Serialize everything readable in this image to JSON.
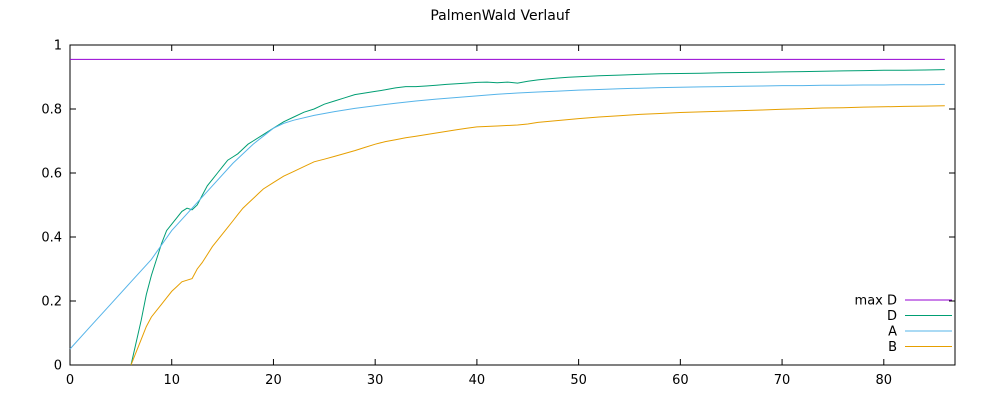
{
  "chart_data": {
    "type": "line",
    "title": "PalmenWald Verlauf",
    "xlabel": "",
    "ylabel": "",
    "xlim": [
      0,
      87
    ],
    "ylim": [
      0,
      1
    ],
    "xticks": [
      0,
      10,
      20,
      30,
      40,
      50,
      60,
      70,
      80
    ],
    "ytick_values": [
      0,
      0.2,
      0.4,
      0.6,
      0.8,
      1
    ],
    "ytick_labels": [
      "0",
      "0.2",
      "0.4",
      "0.6",
      "0.8",
      "1"
    ],
    "grid": false,
    "border_box": true,
    "legend_position": "inside bottom right",
    "axis_color": "#000000",
    "series": [
      {
        "name": "max D",
        "color": "#9400d3",
        "points": [
          [
            0,
            0.955
          ],
          [
            86,
            0.955
          ]
        ]
      },
      {
        "name": "D",
        "color": "#009e73",
        "points": [
          [
            6,
            0
          ],
          [
            6.5,
            0.07
          ],
          [
            7,
            0.14
          ],
          [
            7.5,
            0.22
          ],
          [
            8,
            0.28
          ],
          [
            8.5,
            0.33
          ],
          [
            9,
            0.38
          ],
          [
            9.5,
            0.42
          ],
          [
            10,
            0.44
          ],
          [
            10.5,
            0.46
          ],
          [
            11,
            0.48
          ],
          [
            11.5,
            0.49
          ],
          [
            12,
            0.485
          ],
          [
            12.5,
            0.5
          ],
          [
            13,
            0.53
          ],
          [
            13.5,
            0.56
          ],
          [
            14,
            0.58
          ],
          [
            14.5,
            0.6
          ],
          [
            15,
            0.62
          ],
          [
            15.5,
            0.64
          ],
          [
            16,
            0.65
          ],
          [
            16.5,
            0.66
          ],
          [
            17,
            0.675
          ],
          [
            17.5,
            0.69
          ],
          [
            18,
            0.7
          ],
          [
            19,
            0.72
          ],
          [
            20,
            0.74
          ],
          [
            21,
            0.76
          ],
          [
            22,
            0.775
          ],
          [
            23,
            0.79
          ],
          [
            24,
            0.8
          ],
          [
            25,
            0.815
          ],
          [
            26,
            0.825
          ],
          [
            27,
            0.835
          ],
          [
            28,
            0.845
          ],
          [
            29,
            0.85
          ],
          [
            30,
            0.855
          ],
          [
            31,
            0.86
          ],
          [
            32,
            0.866
          ],
          [
            33,
            0.87
          ],
          [
            34,
            0.87
          ],
          [
            35,
            0.872
          ],
          [
            36,
            0.874
          ],
          [
            37,
            0.877
          ],
          [
            38,
            0.879
          ],
          [
            39,
            0.881
          ],
          [
            40,
            0.883
          ],
          [
            41,
            0.884
          ],
          [
            42,
            0.882
          ],
          [
            43,
            0.884
          ],
          [
            44,
            0.881
          ],
          [
            45,
            0.887
          ],
          [
            46,
            0.891
          ],
          [
            47,
            0.894
          ],
          [
            48,
            0.897
          ],
          [
            49,
            0.899
          ],
          [
            50,
            0.901
          ],
          [
            52,
            0.904
          ],
          [
            54,
            0.906
          ],
          [
            56,
            0.908
          ],
          [
            58,
            0.91
          ],
          [
            60,
            0.911
          ],
          [
            62,
            0.912
          ],
          [
            64,
            0.913
          ],
          [
            66,
            0.914
          ],
          [
            68,
            0.915
          ],
          [
            70,
            0.916
          ],
          [
            72,
            0.917
          ],
          [
            74,
            0.918
          ],
          [
            76,
            0.919
          ],
          [
            78,
            0.92
          ],
          [
            80,
            0.921
          ],
          [
            82,
            0.921
          ],
          [
            84,
            0.922
          ],
          [
            86,
            0.923
          ]
        ]
      },
      {
        "name": "A",
        "color": "#56b4e9",
        "points": [
          [
            0,
            0.05
          ],
          [
            2,
            0.12
          ],
          [
            4,
            0.19
          ],
          [
            6,
            0.26
          ],
          [
            8,
            0.33
          ],
          [
            10,
            0.42
          ],
          [
            12,
            0.49
          ],
          [
            14,
            0.56
          ],
          [
            16,
            0.63
          ],
          [
            18,
            0.69
          ],
          [
            19,
            0.715
          ],
          [
            20,
            0.74
          ],
          [
            21,
            0.755
          ],
          [
            22,
            0.765
          ],
          [
            24,
            0.78
          ],
          [
            26,
            0.792
          ],
          [
            28,
            0.802
          ],
          [
            30,
            0.81
          ],
          [
            32,
            0.818
          ],
          [
            34,
            0.825
          ],
          [
            36,
            0.831
          ],
          [
            38,
            0.836
          ],
          [
            40,
            0.841
          ],
          [
            42,
            0.846
          ],
          [
            44,
            0.85
          ],
          [
            46,
            0.853
          ],
          [
            48,
            0.856
          ],
          [
            50,
            0.859
          ],
          [
            52,
            0.861
          ],
          [
            54,
            0.863
          ],
          [
            56,
            0.865
          ],
          [
            58,
            0.867
          ],
          [
            60,
            0.868
          ],
          [
            62,
            0.869
          ],
          [
            64,
            0.87
          ],
          [
            66,
            0.871
          ],
          [
            68,
            0.872
          ],
          [
            70,
            0.873
          ],
          [
            72,
            0.873
          ],
          [
            74,
            0.874
          ],
          [
            76,
            0.874
          ],
          [
            78,
            0.875
          ],
          [
            80,
            0.875
          ],
          [
            82,
            0.876
          ],
          [
            84,
            0.876
          ],
          [
            86,
            0.877
          ]
        ]
      },
      {
        "name": "B",
        "color": "#e69f00",
        "points": [
          [
            6,
            0
          ],
          [
            6.5,
            0.04
          ],
          [
            7,
            0.08
          ],
          [
            7.5,
            0.12
          ],
          [
            8,
            0.15
          ],
          [
            8.5,
            0.17
          ],
          [
            9,
            0.19
          ],
          [
            9.5,
            0.21
          ],
          [
            10,
            0.23
          ],
          [
            10.5,
            0.245
          ],
          [
            11,
            0.26
          ],
          [
            11.5,
            0.265
          ],
          [
            12,
            0.27
          ],
          [
            12.5,
            0.3
          ],
          [
            13,
            0.32
          ],
          [
            13.5,
            0.345
          ],
          [
            14,
            0.37
          ],
          [
            14.5,
            0.39
          ],
          [
            15,
            0.41
          ],
          [
            15.5,
            0.43
          ],
          [
            16,
            0.45
          ],
          [
            16.5,
            0.47
          ],
          [
            17,
            0.49
          ],
          [
            17.5,
            0.505
          ],
          [
            18,
            0.52
          ],
          [
            18.5,
            0.535
          ],
          [
            19,
            0.55
          ],
          [
            20,
            0.57
          ],
          [
            21,
            0.59
          ],
          [
            22,
            0.605
          ],
          [
            23,
            0.62
          ],
          [
            24,
            0.635
          ],
          [
            25,
            0.643
          ],
          [
            26,
            0.652
          ],
          [
            27,
            0.661
          ],
          [
            28,
            0.67
          ],
          [
            29,
            0.68
          ],
          [
            30,
            0.69
          ],
          [
            31,
            0.698
          ],
          [
            32,
            0.704
          ],
          [
            33,
            0.71
          ],
          [
            34,
            0.715
          ],
          [
            35,
            0.72
          ],
          [
            36,
            0.725
          ],
          [
            37,
            0.73
          ],
          [
            38,
            0.735
          ],
          [
            39,
            0.74
          ],
          [
            40,
            0.744
          ],
          [
            42,
            0.747
          ],
          [
            44,
            0.75
          ],
          [
            45,
            0.753
          ],
          [
            46,
            0.758
          ],
          [
            48,
            0.764
          ],
          [
            50,
            0.77
          ],
          [
            52,
            0.775
          ],
          [
            54,
            0.779
          ],
          [
            56,
            0.783
          ],
          [
            58,
            0.786
          ],
          [
            60,
            0.789
          ],
          [
            62,
            0.791
          ],
          [
            64,
            0.793
          ],
          [
            66,
            0.795
          ],
          [
            68,
            0.797
          ],
          [
            70,
            0.799
          ],
          [
            72,
            0.801
          ],
          [
            74,
            0.803
          ],
          [
            76,
            0.804
          ],
          [
            78,
            0.806
          ],
          [
            80,
            0.807
          ],
          [
            82,
            0.808
          ],
          [
            84,
            0.809
          ],
          [
            86,
            0.81
          ]
        ]
      }
    ]
  }
}
